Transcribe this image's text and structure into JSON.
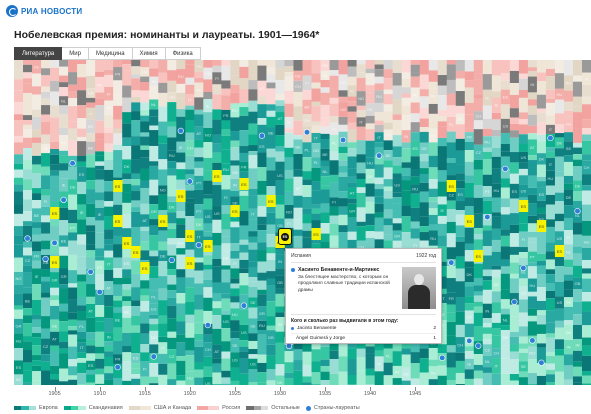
{
  "brand": {
    "name": "РИА НОВОСТИ",
    "icon": "ria-logo-icon"
  },
  "title": "Нобелевская премия: номинанты и лауреаты. 1901—1964*",
  "tabs": [
    {
      "label": "Литература",
      "active": true
    },
    {
      "label": "Мир",
      "active": false
    },
    {
      "label": "Медицина",
      "active": false
    },
    {
      "label": "Химия",
      "active": false
    },
    {
      "label": "Физика",
      "active": false
    }
  ],
  "timeline": {
    "start_year": 1901,
    "end_year": 1964,
    "ticks": [
      "1905",
      "1910",
      "1915",
      "1920",
      "1925",
      "1930",
      "1935",
      "1940",
      "1945"
    ]
  },
  "legend": [
    {
      "label": "Европа",
      "colors": [
        "#0a7b7b",
        "#2fb7ad",
        "#a8e0d8"
      ]
    },
    {
      "label": "Скандинавия",
      "colors": [
        "#08a88b",
        "#3fd3a6",
        "#b8efd9"
      ]
    },
    {
      "label": "США и Канада",
      "colors": [
        "#e3d8c6",
        "#f0e7d6"
      ]
    },
    {
      "label": "Россия",
      "colors": [
        "#f4a5a5",
        "#fbd0cf"
      ]
    },
    {
      "label": "Остальные",
      "colors": [
        "#6e6e6e",
        "#a5a5a5",
        "#dcdcdc"
      ]
    },
    {
      "label": "Страны-лауреаты",
      "dot": "#2f7fd9"
    }
  ],
  "selected": {
    "code": "ES",
    "highlight": "#f7f300"
  },
  "tooltip": {
    "country": "Испания",
    "year": "1922 год",
    "laureate": "Хасинто Бенавенте-и-Мартинес",
    "description": "За блестящее мастерство, с которым он продолжил славные традиции испанской драмы",
    "question": "Кого и сколько раз выдвигали в этом году:",
    "nominees": [
      {
        "name": "Jacinto Benavente",
        "count": "2",
        "laureate": true
      },
      {
        "name": "Ángel Guimerá y Jorge",
        "count": "1",
        "laureate": false
      }
    ]
  },
  "cell_labels": [
    "ES",
    "FR",
    "DE",
    "IT",
    "GB",
    "PL",
    "SE",
    "NO",
    "DK",
    "FI",
    "BE",
    "NL",
    "CH",
    "AT",
    "CZ",
    "HU",
    "PT",
    "GR",
    "IE",
    "US",
    "RU",
    "IN"
  ]
}
